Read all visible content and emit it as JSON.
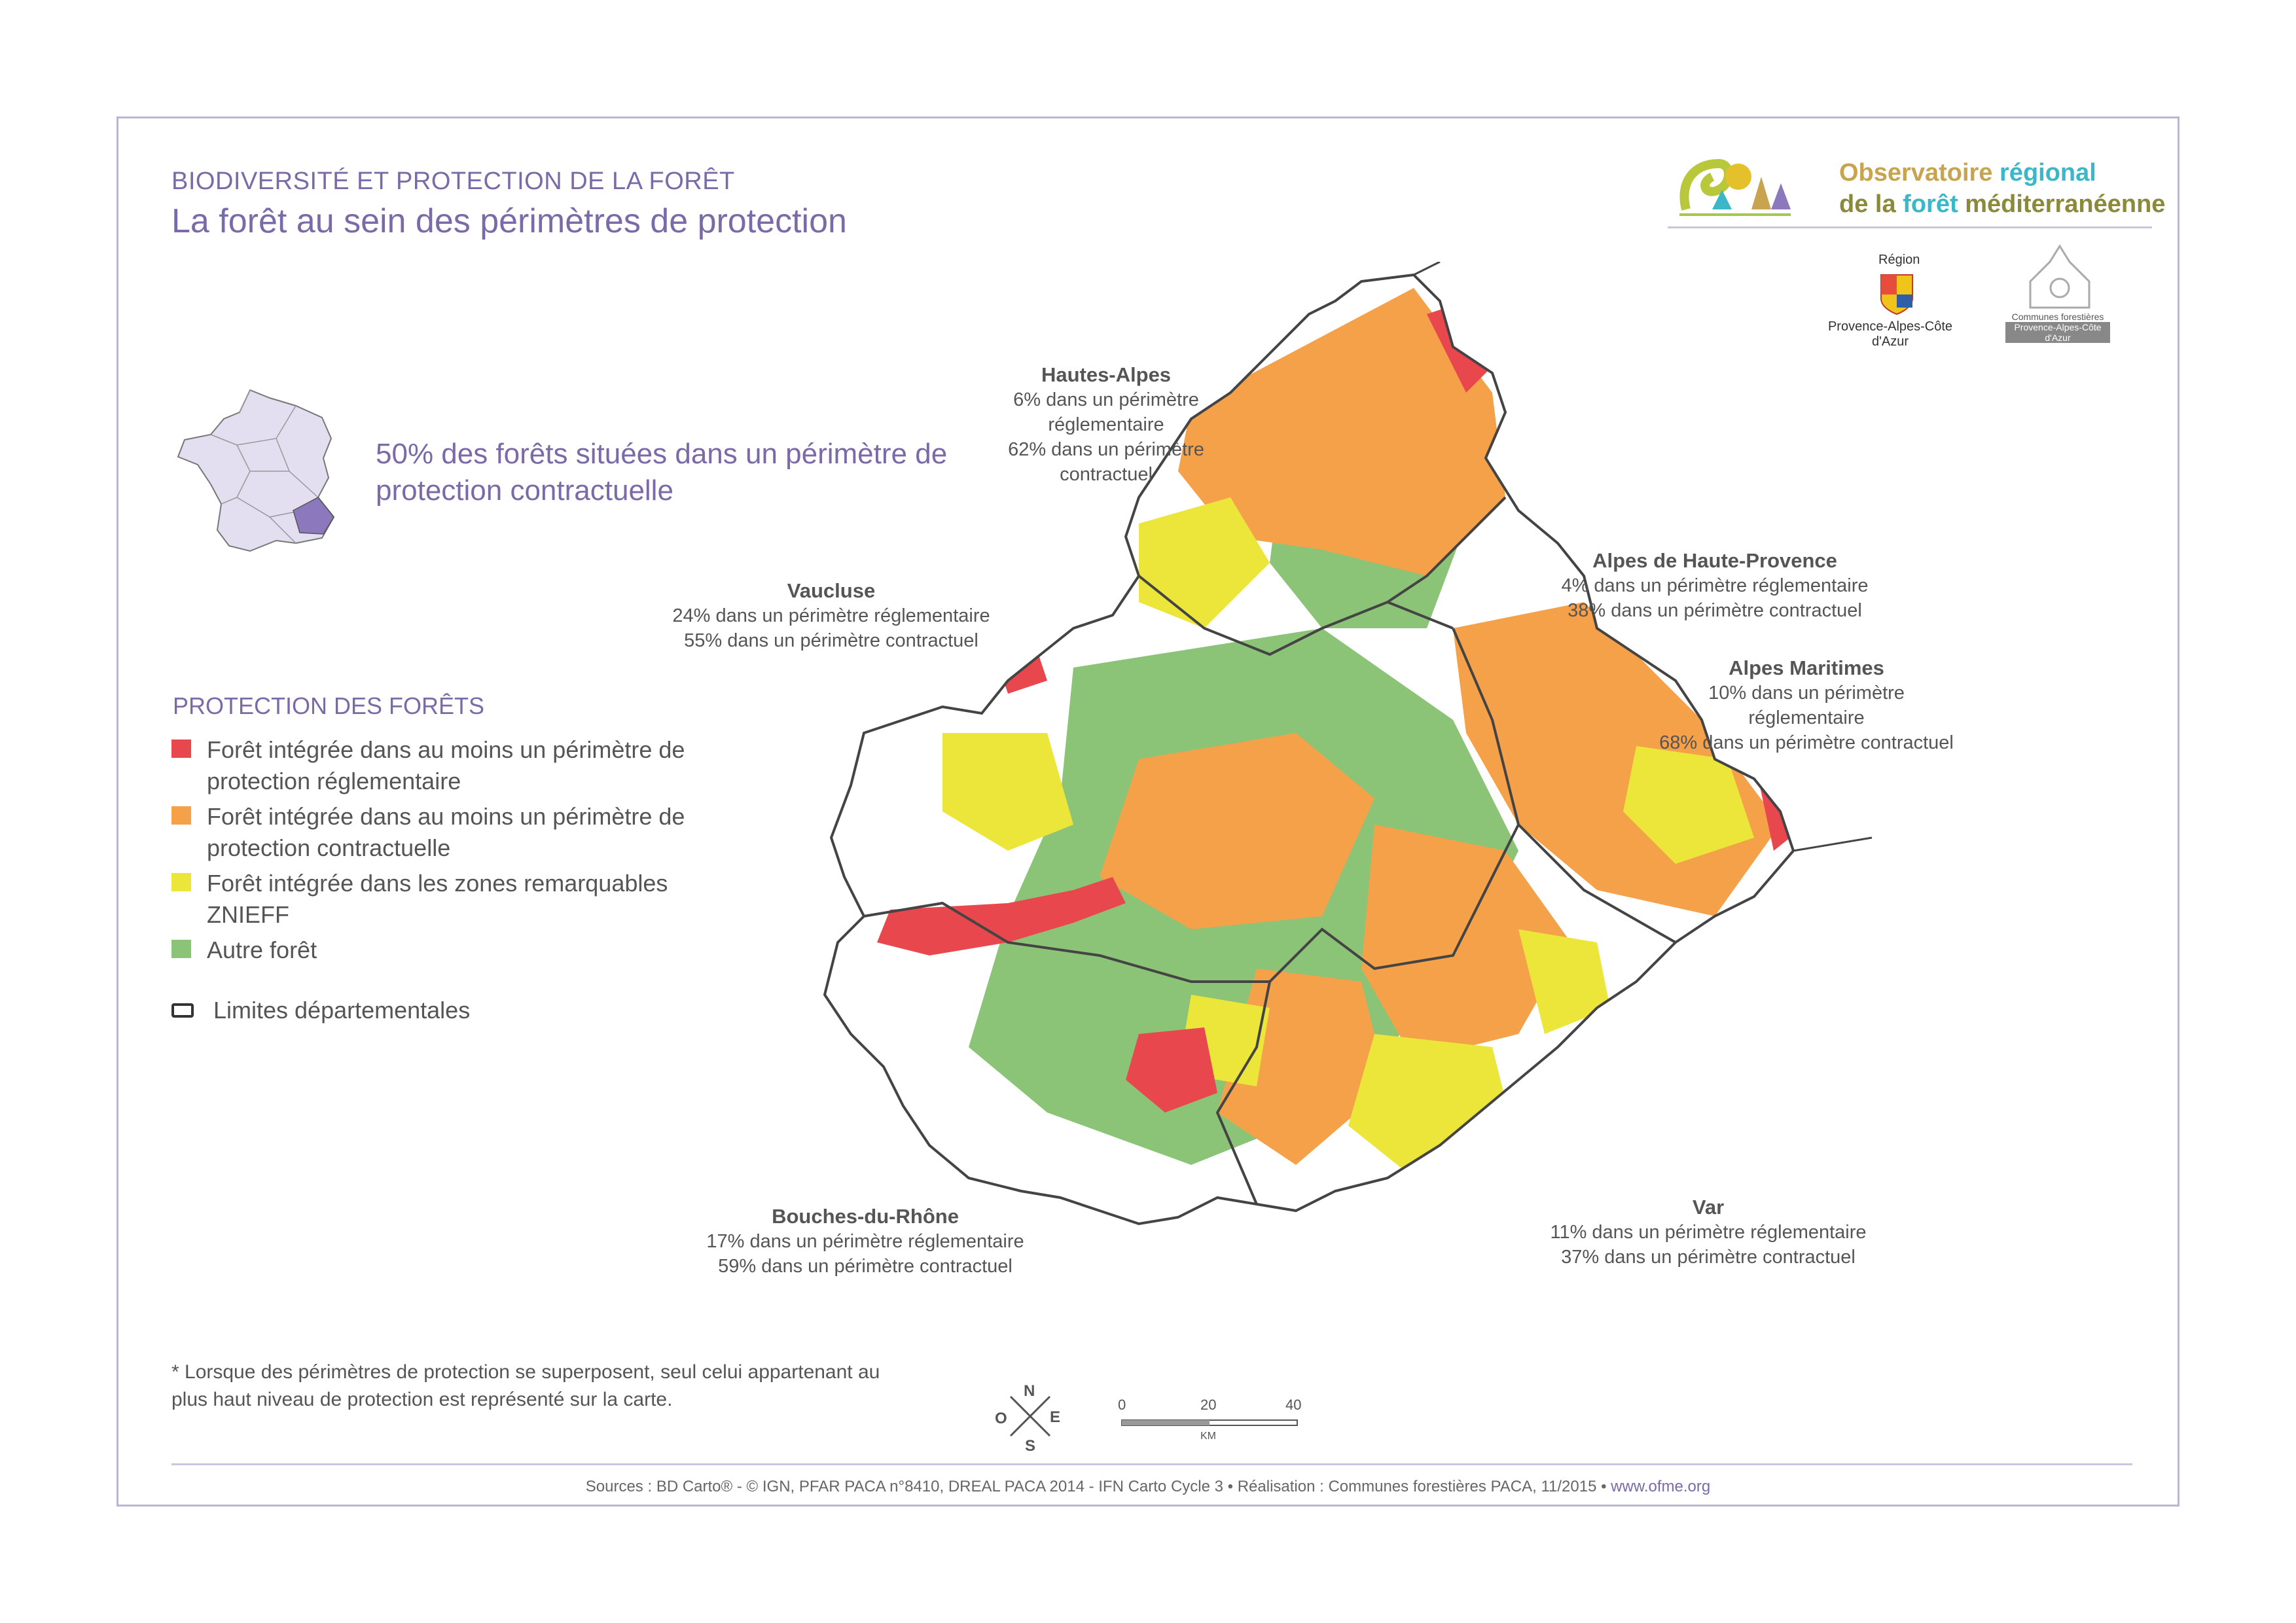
{
  "header": {
    "supertitle": "BIODIVERSITÉ ET PROTECTION DE LA FORÊT",
    "title": "La forêt au sein des périmètres de protection"
  },
  "headline": "50% des forêts situées dans un périmètre de protection contractuelle",
  "legend": {
    "title": "PROTECTION DES FORÊTS",
    "items": [
      {
        "label": "Forêt intégrée dans au moins un périmètre de protection réglementaire",
        "color": "#e8474d"
      },
      {
        "label": "Forêt intégrée dans au moins un périmètre de protection contractuelle",
        "color": "#f4a14a"
      },
      {
        "label": "Forêt intégrée dans les zones remarquables ZNIEFF",
        "color": "#ece63a"
      },
      {
        "label": "Autre forêt",
        "color": "#8cc477"
      }
    ],
    "boundary_label": "Limites départementales"
  },
  "departments": [
    {
      "name": "Hautes-Alpes",
      "line1": "6% dans un périmètre réglementaire",
      "line2": "62% dans un périmètre contractuel"
    },
    {
      "name": "Alpes de Haute-Provence",
      "line1": "4% dans un périmètre réglementaire",
      "line2": "38% dans un périmètre contractuel"
    },
    {
      "name": "Alpes Maritimes",
      "line1": "10% dans un périmètre réglementaire",
      "line2": "68% dans un périmètre contractuel"
    },
    {
      "name": "Vaucluse",
      "line1": "24% dans un périmètre réglementaire",
      "line2": "55% dans un périmètre contractuel"
    },
    {
      "name": "Bouches-du-Rhône",
      "line1": "17% dans un périmètre réglementaire",
      "line2": "59% dans un périmètre contractuel"
    },
    {
      "name": "Var",
      "line1": "11% dans un périmètre réglementaire",
      "line2": "37% dans un périmètre contractuel"
    }
  ],
  "note": "* Lorsque des périmètres de protection se superposent, seul celui appartenant au plus haut niveau de protection est représenté sur la carte.",
  "scale": {
    "ticks": [
      "0",
      "20",
      "40"
    ],
    "unit": "KM"
  },
  "compass": {
    "n": "N",
    "s": "S",
    "e": "E",
    "o": "O"
  },
  "logos": {
    "observatoire_line1a": "Observatoire",
    "observatoire_line1b": "régional",
    "observatoire_line2a": "de la",
    "observatoire_line2b": "forêt",
    "observatoire_line2c": "méditerranéenne",
    "region_top": "Région",
    "region_name": "Provence-Alpes-Côte d'Azur",
    "cf_name": "Communes forestières",
    "cf_sub": "Provence-Alpes-Côte d'Azur"
  },
  "footer": {
    "sources": "Sources : BD Carto® - © IGN, PFAR PACA n°8410, DREAL PACA 2014 - IFN Carto Cycle 3 • Réalisation : Communes forestières PACA, 11/2015 •",
    "url": "www.ofme.org"
  },
  "colors": {
    "accent": "#7b6aa8",
    "red": "#e8474d",
    "orange": "#f4a14a",
    "yellow": "#ece63a",
    "green": "#8cc477"
  }
}
